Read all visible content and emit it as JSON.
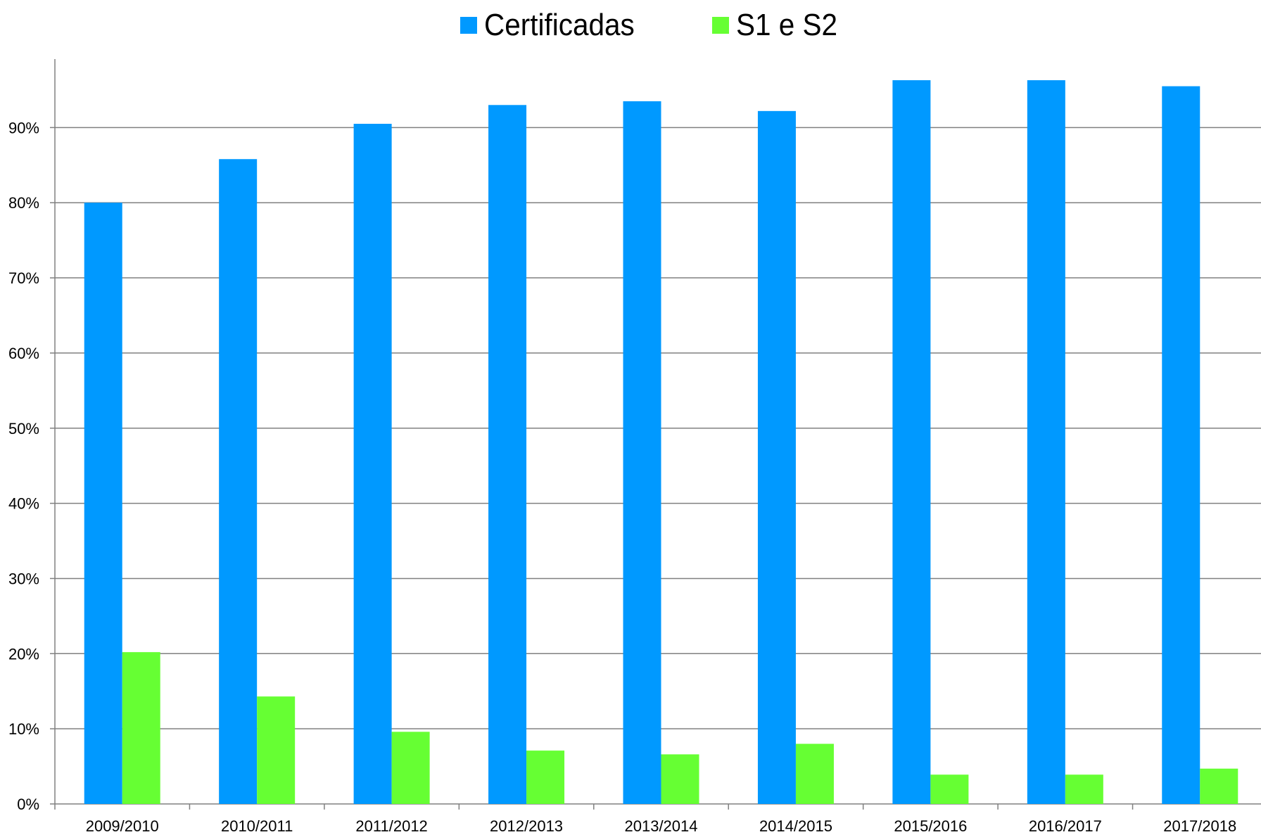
{
  "chart_data": {
    "type": "bar",
    "categories": [
      "2009/2010",
      "2010/2011",
      "2011/2012",
      "2012/2013",
      "2013/2014",
      "2014/2015",
      "2015/2016",
      "2016/2017",
      "2017/2018"
    ],
    "series": [
      {
        "name": "Certificadas",
        "color": "#0099FF",
        "values": [
          80,
          85.8,
          90.5,
          93,
          93.5,
          92.2,
          96.3,
          96.3,
          95.5
        ]
      },
      {
        "name": "S1 e S2",
        "color": "#66FF33",
        "values": [
          20.2,
          14.3,
          9.6,
          7.1,
          6.6,
          8.0,
          3.9,
          3.9,
          4.7
        ]
      }
    ],
    "ylim": [
      0,
      99
    ],
    "y_ticks": [
      0,
      10,
      20,
      30,
      40,
      50,
      60,
      70,
      80,
      90
    ],
    "y_tick_labels": [
      "0%",
      "10%",
      "20%",
      "30%",
      "40%",
      "50%",
      "60%",
      "70%",
      "80%",
      "90%"
    ],
    "grid": true,
    "legend_position": "top-center",
    "xlabel": "",
    "ylabel": "",
    "title": ""
  }
}
